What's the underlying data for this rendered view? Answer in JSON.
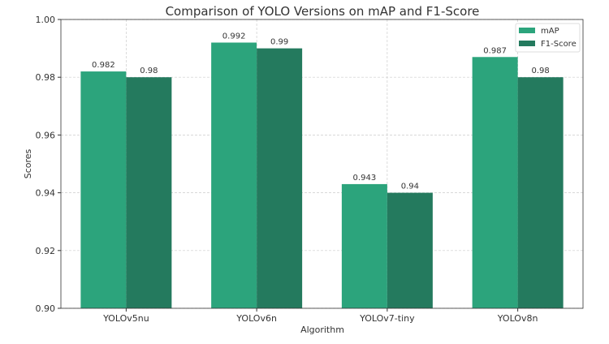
{
  "chart_data": {
    "type": "bar",
    "title": "Comparison of YOLO Versions on mAP and F1-Score",
    "xlabel": "Algorithm",
    "ylabel": "Scores",
    "ylim": [
      0.9,
      1.0
    ],
    "yticks": [
      "0.90",
      "0.92",
      "0.94",
      "0.96",
      "0.98",
      "1.00"
    ],
    "categories": [
      "YOLOv5nu",
      "YOLOv6n",
      "YOLOv7-tiny",
      "YOLOv8n"
    ],
    "series": [
      {
        "name": "mAP",
        "values": [
          0.982,
          0.992,
          0.943,
          0.987
        ],
        "labels": [
          "0.982",
          "0.992",
          "0.943",
          "0.987"
        ],
        "color": "#2ca47c"
      },
      {
        "name": "F1-Score",
        "values": [
          0.98,
          0.99,
          0.94,
          0.98
        ],
        "labels": [
          "0.98",
          "0.99",
          "0.94",
          "0.98"
        ],
        "color": "#247a5e"
      }
    ],
    "grid": true,
    "legend": "top-right"
  }
}
